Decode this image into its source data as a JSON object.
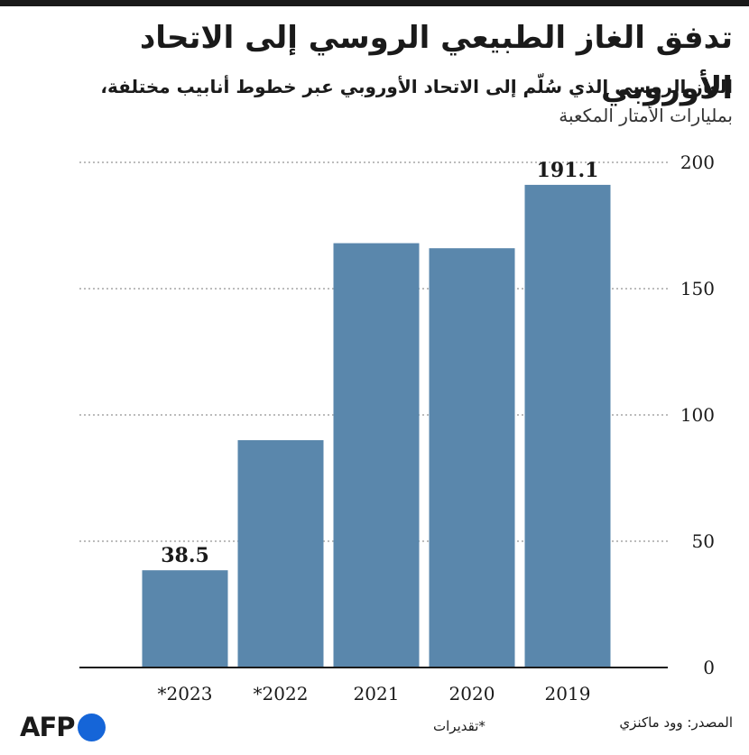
{
  "title": "تدفق الغاز الطبيعي الروسي إلى الاتحاد الأوروبي",
  "subtitle": "الغاز الروسي الذي سُلّم إلى الاتحاد الأوروبي عبر خطوط أنابيب مختلفة،",
  "unit_label": "بمليارات الأمتار المكعبة",
  "source": "المصدر: وود ماكنزي",
  "note": "*تقديرات",
  "logo": "AFP",
  "colors": {
    "bar": "#5a87ac",
    "accent_dot": "#1565d8",
    "grid": "#7a7a7a",
    "axis": "#1a1a1a"
  },
  "chart_data": {
    "type": "bar",
    "categories": [
      "*2023",
      "*2022",
      "2021",
      "2020",
      "2019"
    ],
    "values": [
      38.5,
      90,
      168,
      166,
      191.1
    ],
    "value_labels": [
      "38.5",
      "",
      "",
      "",
      "191.1"
    ],
    "yticks": [
      0,
      50,
      100,
      150,
      200
    ],
    "ylim": [
      0,
      200
    ],
    "grid": true,
    "y_axis_side": "right"
  }
}
